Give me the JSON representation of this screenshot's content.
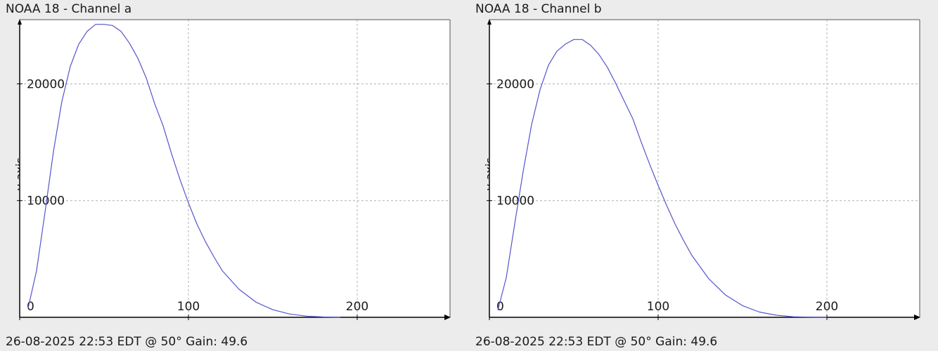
{
  "chart_data": [
    {
      "type": "line",
      "title": "NOAA 18 - Channel a",
      "footer": "26-08-2025 22:53 EDT @ 50° Gain: 49.6",
      "ylabel": "y-axis",
      "xlim": [
        0,
        255
      ],
      "ylim": [
        0,
        25500
      ],
      "xticks": [
        0,
        100,
        200
      ],
      "yticks": [
        10000,
        20000
      ],
      "grid": true,
      "line_color": "#5555cc",
      "x": [
        5,
        10,
        15,
        20,
        25,
        30,
        35,
        40,
        45,
        50,
        55,
        60,
        65,
        70,
        75,
        80,
        85,
        90,
        95,
        100,
        105,
        110,
        115,
        120,
        130,
        140,
        150,
        160,
        170,
        180,
        190
      ],
      "y": [
        800,
        4000,
        9000,
        14200,
        18500,
        21500,
        23400,
        24500,
        25100,
        25100,
        25000,
        24500,
        23500,
        22200,
        20500,
        18300,
        16400,
        14000,
        11800,
        9800,
        8000,
        6500,
        5200,
        4000,
        2400,
        1300,
        650,
        280,
        100,
        30,
        0
      ]
    },
    {
      "type": "line",
      "title": "NOAA 18 - Channel b",
      "footer": "26-08-2025 22:53 EDT @ 50° Gain: 49.6",
      "ylabel": "y-axis",
      "xlim": [
        0,
        255
      ],
      "ylim": [
        0,
        25500
      ],
      "xticks": [
        0,
        100,
        200
      ],
      "yticks": [
        10000,
        20000
      ],
      "grid": true,
      "line_color": "#5555cc",
      "x": [
        5,
        10,
        15,
        20,
        25,
        30,
        35,
        40,
        45,
        50,
        55,
        60,
        65,
        70,
        75,
        80,
        85,
        90,
        95,
        100,
        105,
        110,
        115,
        120,
        130,
        140,
        150,
        160,
        170,
        180,
        190,
        200
      ],
      "y": [
        600,
        3400,
        8000,
        12500,
        16500,
        19500,
        21600,
        22800,
        23400,
        23800,
        23800,
        23300,
        22500,
        21400,
        20000,
        18500,
        17000,
        15000,
        13100,
        11300,
        9600,
        8000,
        6600,
        5300,
        3300,
        1900,
        1000,
        450,
        180,
        50,
        10,
        0
      ]
    }
  ]
}
